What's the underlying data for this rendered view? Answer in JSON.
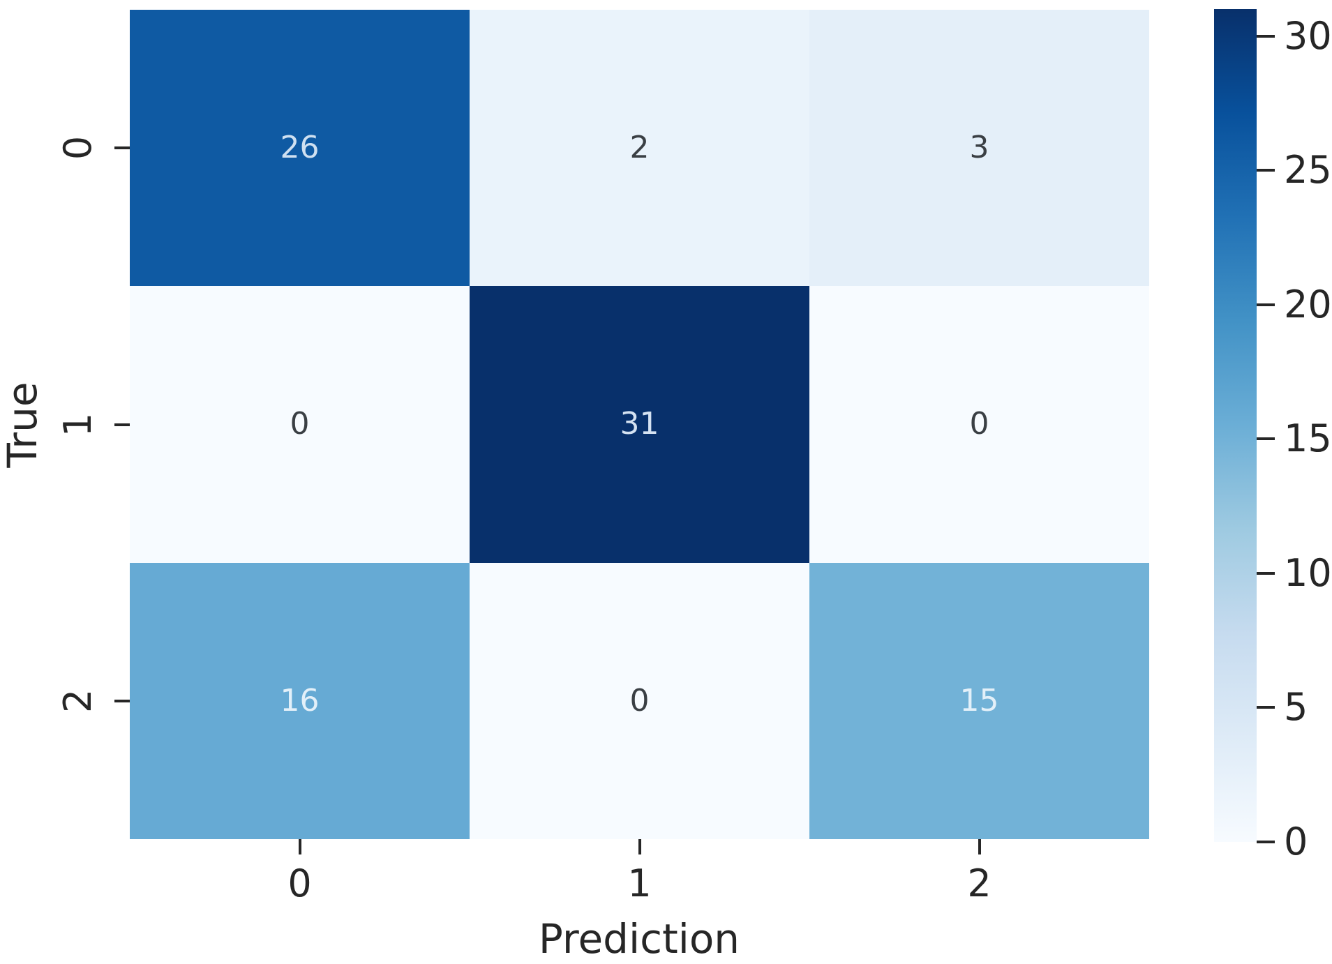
{
  "chart_data": {
    "type": "heatmap",
    "title": "",
    "xlabel": "Prediction",
    "ylabel": "True",
    "x_ticklabels": [
      "0",
      "1",
      "2"
    ],
    "y_ticklabels": [
      "0",
      "1",
      "2"
    ],
    "matrix": [
      [
        26,
        2,
        3
      ],
      [
        0,
        31,
        0
      ],
      [
        16,
        0,
        15
      ]
    ],
    "vmin": 0,
    "vmax": 31,
    "colormap": "Blues",
    "grid": false,
    "cell_colors": [
      [
        "#0f5aa3",
        "#eaf3fb",
        "#e4eff9"
      ],
      [
        "#f7fbff",
        "#08306b",
        "#f7fbff"
      ],
      [
        "#66aad4",
        "#f7fbff",
        "#72b2d7"
      ]
    ],
    "cell_text_colors": [
      [
        "#cfe0f1",
        "#3a3f44",
        "#3a3f44"
      ],
      [
        "#3a3f44",
        "#d5e2f2",
        "#3a3f44"
      ],
      [
        "#e3f0f9",
        "#3a3f44",
        "#e3f0f9"
      ]
    ],
    "colorbar": {
      "tick_labels": [
        "0",
        "5",
        "10",
        "15",
        "20",
        "25",
        "30"
      ],
      "tick_values": [
        0,
        5,
        10,
        15,
        20,
        25,
        30
      ],
      "gradient_stops_top_to_bottom": [
        "#08306b",
        "#08519c",
        "#2171b5",
        "#4292c6",
        "#6baed6",
        "#9ecae1",
        "#c6dbef",
        "#deebf7",
        "#f7fbff"
      ]
    },
    "tick_color": "#262626",
    "background_color": "#ffffff"
  }
}
